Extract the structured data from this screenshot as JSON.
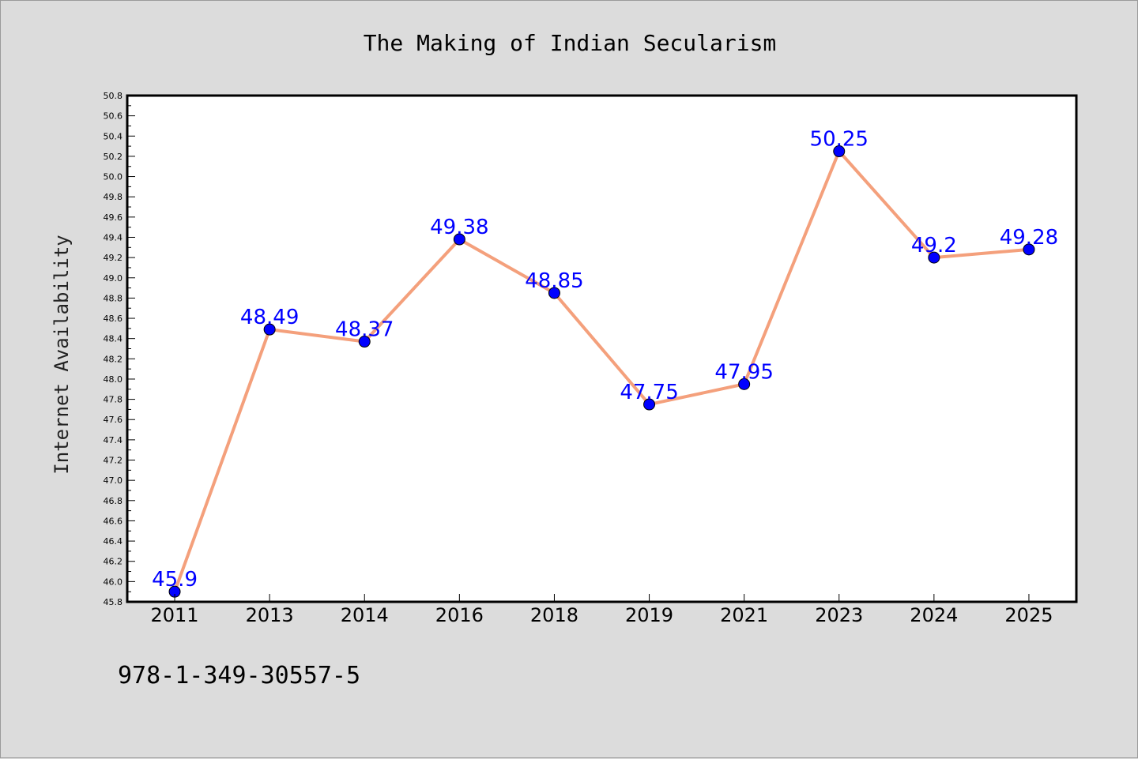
{
  "chart_data": {
    "type": "line",
    "title": "The Making of Indian Secularism",
    "xlabel": "",
    "ylabel": "Internet Availability",
    "categories": [
      "2011",
      "2013",
      "2014",
      "2016",
      "2018",
      "2019",
      "2021",
      "2023",
      "2024",
      "2025"
    ],
    "values": [
      45.9,
      48.49,
      48.37,
      49.38,
      48.85,
      47.75,
      47.95,
      50.25,
      49.2,
      49.28
    ],
    "data_labels": [
      "45.9",
      "48.49",
      "48.37",
      "49.38",
      "48.85",
      "47.75",
      "47.95",
      "50.25",
      "49.2",
      "49.28"
    ],
    "ylim": [
      45.8,
      50.8
    ],
    "yticks": [
      "45.8",
      "46.0",
      "46.2",
      "46.4",
      "46.6",
      "46.8",
      "47.0",
      "47.2",
      "47.4",
      "47.6",
      "47.8",
      "48.0",
      "48.2",
      "48.4",
      "48.6",
      "48.8",
      "49.0",
      "49.2",
      "49.4",
      "49.6",
      "49.8",
      "50.0",
      "50.2",
      "50.4",
      "50.6",
      "50.8"
    ],
    "grid": false,
    "legend": "none",
    "line_color": "#f4a07c",
    "marker_color": "#0000ff"
  },
  "footer": {
    "isbn": "978-1-349-30557-5"
  }
}
